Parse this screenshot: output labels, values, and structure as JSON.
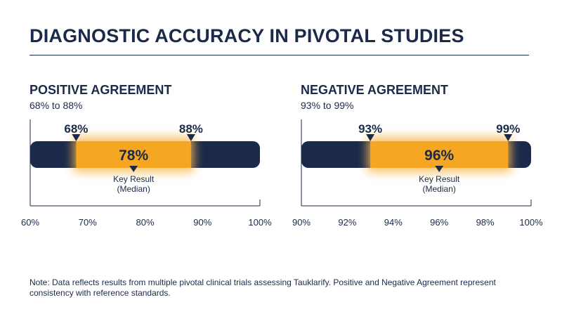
{
  "title": "DIAGNOSTIC ACCURACY IN PIVOTAL STUDIES",
  "chart_data": [
    {
      "type": "bar",
      "title": "POSITIVE AGREEMENT",
      "subtitle": "68% to 88%",
      "xlim": [
        60,
        100
      ],
      "ticks": [
        60,
        70,
        80,
        90,
        100
      ],
      "tick_labels": [
        "60%",
        "70%",
        "80%",
        "90%",
        "100%"
      ],
      "range_low": 68,
      "range_high": 88,
      "median": 78,
      "low_label": "68%",
      "high_label": "88%",
      "median_label": "78%",
      "key_result_label": [
        "Key Result",
        "(Median)"
      ],
      "colors": {
        "bar": "#1b2a4a",
        "range": "#f5a623",
        "glow": "#f8b84a"
      }
    },
    {
      "type": "bar",
      "title": "NEGATIVE AGREEMENT",
      "subtitle": "93% to 99%",
      "xlim": [
        90,
        100
      ],
      "ticks": [
        90,
        92,
        94,
        96,
        98,
        100
      ],
      "tick_labels": [
        "90%",
        "92%",
        "94%",
        "96%",
        "98%",
        "100%"
      ],
      "range_low": 93,
      "range_high": 99,
      "median": 96,
      "low_label": "93%",
      "high_label": "99%",
      "median_label": "96%",
      "key_result_label": [
        "Key Result",
        "(Median)"
      ],
      "colors": {
        "bar": "#1b2a4a",
        "range": "#f5a623",
        "glow": "#f8b84a"
      }
    }
  ],
  "note": "Note: Data reflects results from multiple pivotal clinical trials assessing Tauklarify. Positive and Negative Agreement represent consistency with reference standards."
}
